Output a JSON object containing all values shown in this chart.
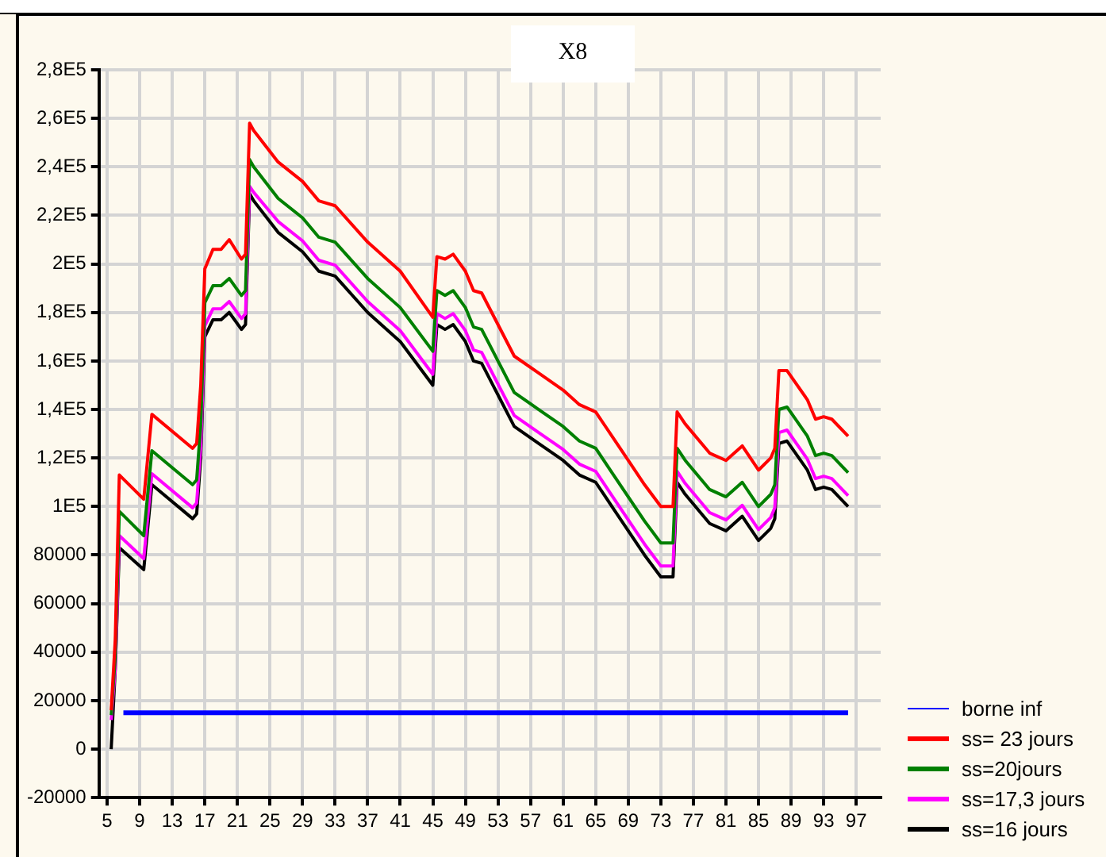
{
  "chart_data": {
    "type": "line",
    "title": "X8",
    "x": [
      5.5,
      6,
      6.5,
      9.5,
      10.5,
      15.5,
      16,
      16.5,
      17,
      18,
      19,
      20,
      21.5,
      22,
      22.5,
      23,
      26,
      29,
      31,
      33,
      37,
      41,
      45,
      45.5,
      46.5,
      47.5,
      49,
      50,
      51,
      55,
      58,
      61,
      63,
      65,
      67,
      69,
      71,
      73,
      74.5,
      75,
      76,
      79,
      81,
      83,
      85,
      86.5,
      87,
      87.5,
      88.5,
      91,
      92,
      93,
      94,
      96
    ],
    "series": [
      {
        "name": "borne inf",
        "color": "#0000ff",
        "x": [
          7,
          96
        ],
        "values": [
          15000,
          15000
        ]
      },
      {
        "name": "ss= 23 jours",
        "color": "#ff0000",
        "values": [
          16000,
          45000,
          113000,
          103000,
          138000,
          124000,
          126000,
          150000,
          198000,
          206000,
          206000,
          210000,
          202000,
          204000,
          258000,
          255000,
          242000,
          234000,
          226000,
          224000,
          209000,
          197000,
          178000,
          203000,
          202000,
          204000,
          197000,
          189000,
          188000,
          162000,
          155000,
          148000,
          142000,
          139000,
          129000,
          119000,
          109000,
          100000,
          100000,
          139000,
          134000,
          122000,
          119000,
          125000,
          115000,
          120000,
          124000,
          156000,
          156000,
          144000,
          136000,
          137000,
          136000,
          129000
        ]
      },
      {
        "name": "ss=20jours",
        "color": "#008000",
        "values": [
          14000,
          38000,
          98000,
          88000,
          123000,
          109000,
          111000,
          134000,
          184000,
          191000,
          191000,
          194000,
          187000,
          189000,
          243000,
          240000,
          227000,
          219000,
          211000,
          209000,
          194000,
          182000,
          164000,
          189000,
          187000,
          189000,
          182000,
          174000,
          173000,
          147000,
          140000,
          133000,
          127000,
          124000,
          114000,
          104000,
          94000,
          85000,
          85000,
          124000,
          119000,
          107000,
          104000,
          110000,
          100000,
          105000,
          109000,
          140000,
          141000,
          129000,
          121000,
          122000,
          121000,
          114000
        ]
      },
      {
        "name": "ss=17,3 jours",
        "color": "#ff00ff",
        "values": [
          12000,
          33000,
          88000,
          78500,
          113500,
          99500,
          101500,
          124500,
          174500,
          181500,
          181500,
          184500,
          177500,
          179500,
          232000,
          229500,
          217500,
          209500,
          201500,
          199500,
          184500,
          172500,
          154500,
          179500,
          177500,
          179500,
          172500,
          164500,
          163500,
          137500,
          130500,
          123500,
          117500,
          114500,
          104500,
          94500,
          84500,
          75500,
          75500,
          114500,
          109500,
          97500,
          94500,
          100500,
          90500,
          95500,
          99500,
          130500,
          131500,
          119500,
          111500,
          112500,
          111500,
          104500
        ]
      },
      {
        "name": "ss=16 jours",
        "color": "#000000",
        "values": [
          0,
          33000,
          83000,
          74000,
          109000,
          95000,
          97000,
          120000,
          170000,
          177000,
          177000,
          180000,
          173000,
          175000,
          229000,
          226000,
          213000,
          205000,
          197000,
          195000,
          180000,
          168000,
          150000,
          175000,
          173000,
          175000,
          168000,
          160000,
          159000,
          133000,
          126000,
          119000,
          113000,
          110000,
          100000,
          90000,
          80000,
          71000,
          71000,
          110000,
          105000,
          93000,
          90000,
          96000,
          86000,
          91000,
          95000,
          126000,
          127000,
          115000,
          107000,
          108000,
          107000,
          100000
        ]
      }
    ],
    "xlim": [
      4,
      100
    ],
    "xticks": [
      5,
      9,
      13,
      17,
      21,
      25,
      29,
      33,
      37,
      41,
      45,
      49,
      53,
      57,
      61,
      65,
      69,
      73,
      77,
      81,
      85,
      89,
      93,
      97
    ],
    "ylim": [
      -20000,
      280000
    ],
    "yticks": [
      -20000,
      0,
      20000,
      40000,
      60000,
      80000,
      {
        "value": 100000,
        "label": "1E5"
      },
      {
        "value": 120000,
        "label": "1,2E5"
      },
      {
        "value": 140000,
        "label": "1,4E5"
      },
      {
        "value": 160000,
        "label": "1,6E5"
      },
      {
        "value": 180000,
        "label": "1,8E5"
      },
      {
        "value": 200000,
        "label": "2E5"
      },
      {
        "value": 220000,
        "label": "2,2E5"
      },
      {
        "value": 240000,
        "label": "2,4E5"
      },
      {
        "value": 260000,
        "label": "2,6E5"
      },
      {
        "value": 280000,
        "label": "2,8E5"
      }
    ],
    "grid": true,
    "legend": "bottom right",
    "marker": "none",
    "line_style": "solid"
  }
}
